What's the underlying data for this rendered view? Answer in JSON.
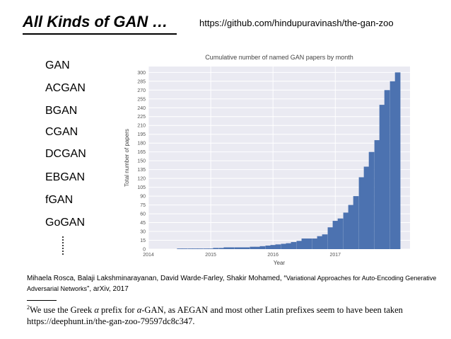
{
  "header": {
    "title": "All Kinds of GAN …",
    "url": "https://github.com/hindupuravinash/the-gan-zoo"
  },
  "gan_list": [
    "GAN",
    "ACGAN",
    "BGAN",
    "CGAN",
    "DCGAN",
    "EBGAN",
    "fGAN",
    "GoGAN"
  ],
  "citation": {
    "authors": "Mihaela Rosca, Balaji Lakshminarayanan, David Warde-Farley, Shakir Mohamed, “",
    "paper_title": "Variational Approaches for Auto-Encoding Generative Adversarial Networks",
    "venue": "”, arXiv, 2017"
  },
  "footnote": {
    "number": "2",
    "text_a": "We use the Greek ",
    "alpha": "α",
    "text_b": " prefix for ",
    "text_c": "-GAN, as AEGAN and most other Latin prefixes seem to have been taken",
    "link": "https://deephunt.in/the-gan-zoo-79597dc8c347."
  },
  "chart_data": {
    "type": "area",
    "title": "Cumulative number of named GAN papers by month",
    "xlabel": "Year",
    "ylabel": "Total number of papers",
    "xlim": [
      2014.0,
      2018.2
    ],
    "ylim": [
      0,
      310
    ],
    "yticks": [
      0,
      15,
      30,
      45,
      60,
      75,
      90,
      105,
      120,
      135,
      150,
      165,
      180,
      195,
      210,
      225,
      240,
      255,
      270,
      285,
      300
    ],
    "xticks": [
      "2014",
      "2015",
      "2016",
      "2017"
    ],
    "grid": true,
    "bar_color": "#4c72b0",
    "background_color": "#eaeaf2",
    "x": [
      2014.5,
      2014.58,
      2014.67,
      2014.75,
      2014.83,
      2014.92,
      2015.0,
      2015.08,
      2015.17,
      2015.25,
      2015.33,
      2015.42,
      2015.5,
      2015.58,
      2015.67,
      2015.75,
      2015.83,
      2015.92,
      2016.0,
      2016.08,
      2016.17,
      2016.25,
      2016.33,
      2016.42,
      2016.5,
      2016.58,
      2016.67,
      2016.75,
      2016.83,
      2016.92,
      2017.0,
      2017.08,
      2017.17,
      2017.25,
      2017.33,
      2017.42,
      2017.5,
      2017.58,
      2017.67,
      2017.75,
      2017.83,
      2017.92,
      2018.0
    ],
    "y": [
      1,
      1,
      1,
      1,
      1,
      1,
      1,
      2,
      2,
      3,
      3,
      3,
      3,
      3,
      4,
      4,
      5,
      6,
      7,
      8,
      9,
      10,
      12,
      14,
      18,
      18,
      18,
      22,
      25,
      37,
      48,
      52,
      62,
      75,
      90,
      122,
      140,
      165,
      185,
      245,
      270,
      285,
      300
    ]
  }
}
